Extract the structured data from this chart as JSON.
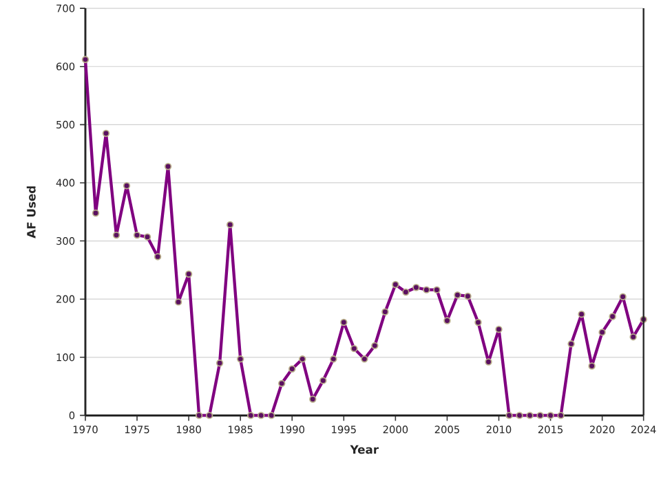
{
  "chart_data": {
    "type": "line",
    "xlabel": "Year",
    "ylabel": "AF Used",
    "x": [
      1970,
      1971,
      1972,
      1973,
      1974,
      1975,
      1976,
      1977,
      1978,
      1979,
      1980,
      1981,
      1982,
      1983,
      1984,
      1985,
      1986,
      1987,
      1988,
      1989,
      1990,
      1991,
      1992,
      1993,
      1994,
      1995,
      1996,
      1997,
      1998,
      1999,
      2000,
      2001,
      2002,
      2003,
      2004,
      2005,
      2006,
      2007,
      2008,
      2009,
      2010,
      2011,
      2012,
      2013,
      2014,
      2015,
      2016,
      2017,
      2018,
      2019,
      2020,
      2021,
      2022,
      2023,
      2024
    ],
    "values": [
      612,
      348,
      485,
      310,
      395,
      310,
      307,
      273,
      428,
      195,
      243,
      0,
      0,
      90,
      328,
      97,
      0,
      0,
      0,
      55,
      80,
      97,
      28,
      60,
      97,
      160,
      115,
      97,
      120,
      178,
      225,
      212,
      220,
      216,
      216,
      163,
      207,
      205,
      160,
      92,
      148,
      0,
      0,
      0,
      0,
      0,
      0,
      123,
      174,
      85,
      143,
      170,
      204,
      135,
      165
    ],
    "color": "#800080",
    "marker": "circle",
    "line_style": "solid",
    "xlim": [
      1970,
      2024
    ],
    "xticks": [
      1970,
      1975,
      1980,
      1985,
      1990,
      1995,
      2000,
      2005,
      2010,
      2015,
      2020,
      2024
    ],
    "ylim": [
      0,
      700
    ],
    "yticks": [
      0,
      100,
      200,
      300,
      400,
      500,
      600,
      700
    ],
    "grid": "y"
  }
}
